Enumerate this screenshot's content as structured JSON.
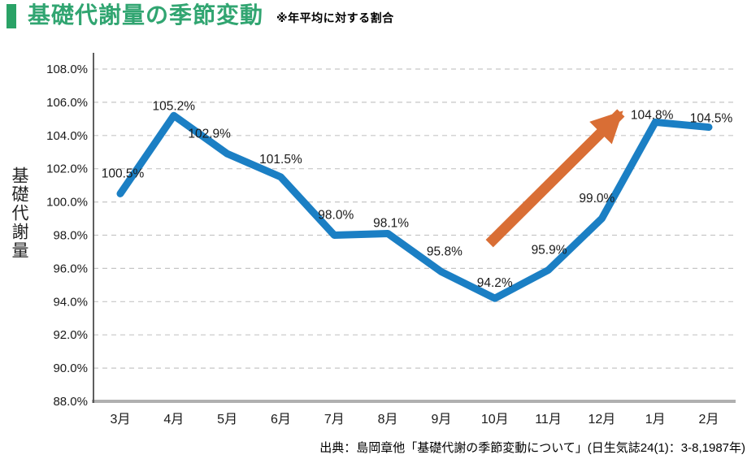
{
  "header": {
    "title": "基礎代謝量の季節変動",
    "subtitle": "※年平均に対する割合"
  },
  "source": "出典：島岡章他「基礎代謝の季節変動について」(日生気誌24(1)：3-8,1987年)",
  "colors": {
    "accent_green": "#2aa266",
    "title_green": "#31a571",
    "line_blue": "#1b7fc4",
    "arrow_orange": "#d96e35",
    "grid": "#c6c6c6",
    "y_axis": "#4d4d4d",
    "baseline": "#b0b0b0"
  },
  "chart_data": {
    "type": "line",
    "title": "基礎代謝量の季節変動",
    "xlabel": "",
    "ylabel": "基礎代謝量",
    "categories": [
      "3月",
      "4月",
      "5月",
      "6月",
      "7月",
      "8月",
      "9月",
      "10月",
      "11月",
      "12月",
      "1月",
      "2月"
    ],
    "values": [
      100.5,
      105.2,
      102.9,
      101.5,
      98.0,
      98.1,
      95.8,
      94.2,
      95.9,
      99.0,
      104.8,
      104.5
    ],
    "point_labels": [
      "100.5%",
      "105.2%",
      "102.9%",
      "101.5%",
      "98.0%",
      "98.1%",
      "95.8%",
      "94.2%",
      "95.9%",
      "99.0%",
      "104.8%",
      "104.5%"
    ],
    "ylim": [
      88,
      108
    ],
    "ytick_step": 2,
    "y_ticks": [
      "108.0%",
      "106.0%",
      "104.0%",
      "102.0%",
      "100.0%",
      "98.0%",
      "96.0%",
      "94.0%",
      "92.0%",
      "90.0%",
      "88.0%"
    ],
    "grid": true,
    "legend_position": "none",
    "line_color": "#1b7fc4",
    "annotation": {
      "shape": "upward-trend-arrow",
      "color": "#d96e35",
      "from_x_index": 6.9,
      "from_value": 97.5,
      "to_x_index": 9.4,
      "to_value": 105.5
    }
  }
}
